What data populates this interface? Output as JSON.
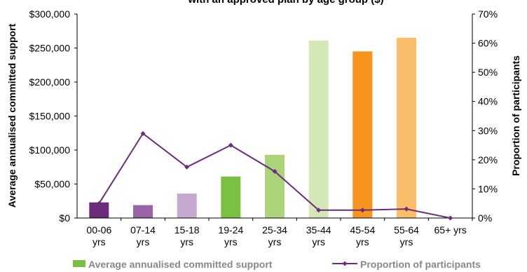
{
  "chart_data": {
    "type": "bar",
    "title": "with an approved plan by age group ($)",
    "categories": [
      [
        "00-06",
        "yrs"
      ],
      [
        "07-14",
        "yrs"
      ],
      [
        "15-18",
        "yrs"
      ],
      [
        "19-24",
        "yrs"
      ],
      [
        "25-34",
        "yrs"
      ],
      [
        "35-44",
        "yrs"
      ],
      [
        "45-54",
        "yrs"
      ],
      [
        "55-64",
        "yrs"
      ],
      [
        "65+ yrs"
      ]
    ],
    "ylabel": "Average annualised committed support",
    "y2label": "Proportion of participants",
    "ylim": [
      0,
      300000
    ],
    "y2lim": [
      0,
      70
    ],
    "yticks": [
      "$0",
      "$50,000",
      "$100,000",
      "$150,000",
      "$200,000",
      "$250,000",
      "$300,000"
    ],
    "y2ticks": [
      "0%",
      "10%",
      "20%",
      "30%",
      "40%",
      "50%",
      "60%",
      "70%"
    ],
    "series": [
      {
        "name": "Average annualised committed support",
        "type": "bar",
        "values": [
          23000,
          19000,
          36000,
          61000,
          93000,
          261000,
          245000,
          265000,
          null
        ],
        "colors": [
          "#6b2c7c",
          "#9a64a6",
          "#c6a9cf",
          "#7ac143",
          "#abd47b",
          "#d3e9b5",
          "#f7941e",
          "#fabd6a",
          "#ffffff"
        ],
        "legend_color": "#7ac143"
      },
      {
        "name": "Proportion of participants",
        "type": "line",
        "axis": "right",
        "values": [
          5,
          29,
          17.5,
          25,
          16,
          2.7,
          2.7,
          3.1,
          0
        ],
        "color": "#6b2c7c"
      }
    ],
    "grid": "none",
    "legend": "bottom"
  }
}
